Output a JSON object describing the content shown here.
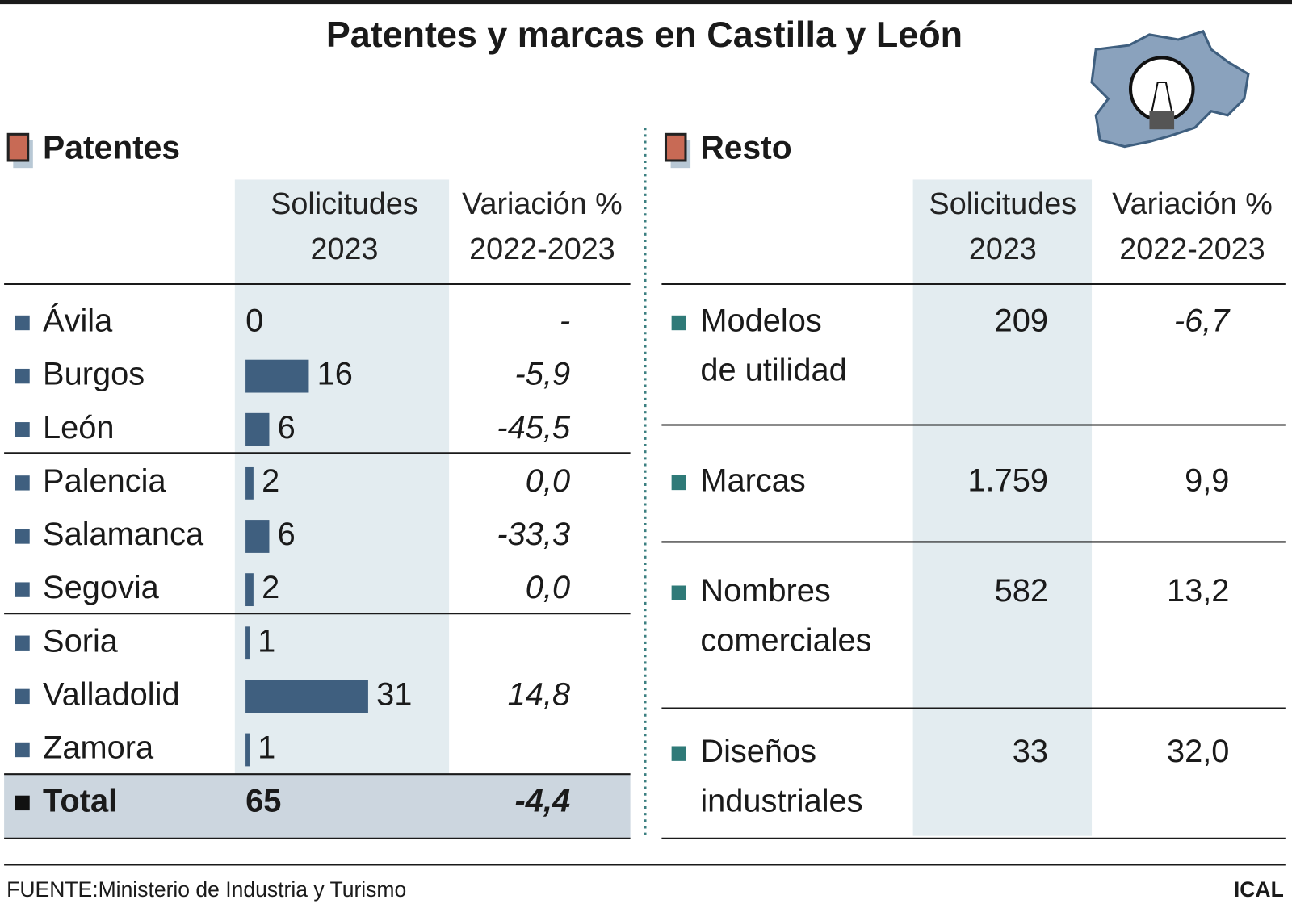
{
  "title": "Patentes y marcas en Castilla y León",
  "patentes": {
    "heading": "Patentes",
    "columns": [
      [
        "Solicitudes",
        "2023"
      ],
      [
        "Variación %",
        "2022-2023"
      ]
    ],
    "rows": [
      {
        "name": "Ávila",
        "solicitudes": 0,
        "variacion": "-"
      },
      {
        "name": "Burgos",
        "solicitudes": 16,
        "variacion": "-5,9"
      },
      {
        "name": "León",
        "solicitudes": 6,
        "variacion": "-45,5"
      },
      {
        "name": "Palencia",
        "solicitudes": 2,
        "variacion": "0,0"
      },
      {
        "name": "Salamanca",
        "solicitudes": 6,
        "variacion": "-33,3"
      },
      {
        "name": "Segovia",
        "solicitudes": 2,
        "variacion": "0,0"
      },
      {
        "name": "Soria",
        "solicitudes": 1
      },
      {
        "name": "Valladolid",
        "solicitudes": 31,
        "variacion": "14,8"
      },
      {
        "name": "Zamora",
        "solicitudes": 1
      }
    ],
    "total": {
      "name": "Total",
      "solicitudes": 65,
      "variacion": "-4,4"
    }
  },
  "resto": {
    "heading": "Resto",
    "columns": [
      [
        "Solicitudes",
        "2023"
      ],
      [
        "Variación %",
        "2022-2023"
      ]
    ],
    "rows": [
      {
        "name": [
          "Modelos",
          "de utilidad"
        ],
        "solicitudes": "209",
        "variacion": "-6,7"
      },
      {
        "name": [
          "Marcas"
        ],
        "solicitudes": "1.759",
        "variacion": "9,9"
      },
      {
        "name": [
          "Nombres",
          "comerciales"
        ],
        "solicitudes": "582",
        "variacion": "13,2"
      },
      {
        "name": [
          "Diseños",
          "industriales"
        ],
        "solicitudes": "33",
        "variacion": "32,0"
      }
    ]
  },
  "source": "FUENTE:Ministerio de Industria y Turismo",
  "credit": "ICAL"
}
